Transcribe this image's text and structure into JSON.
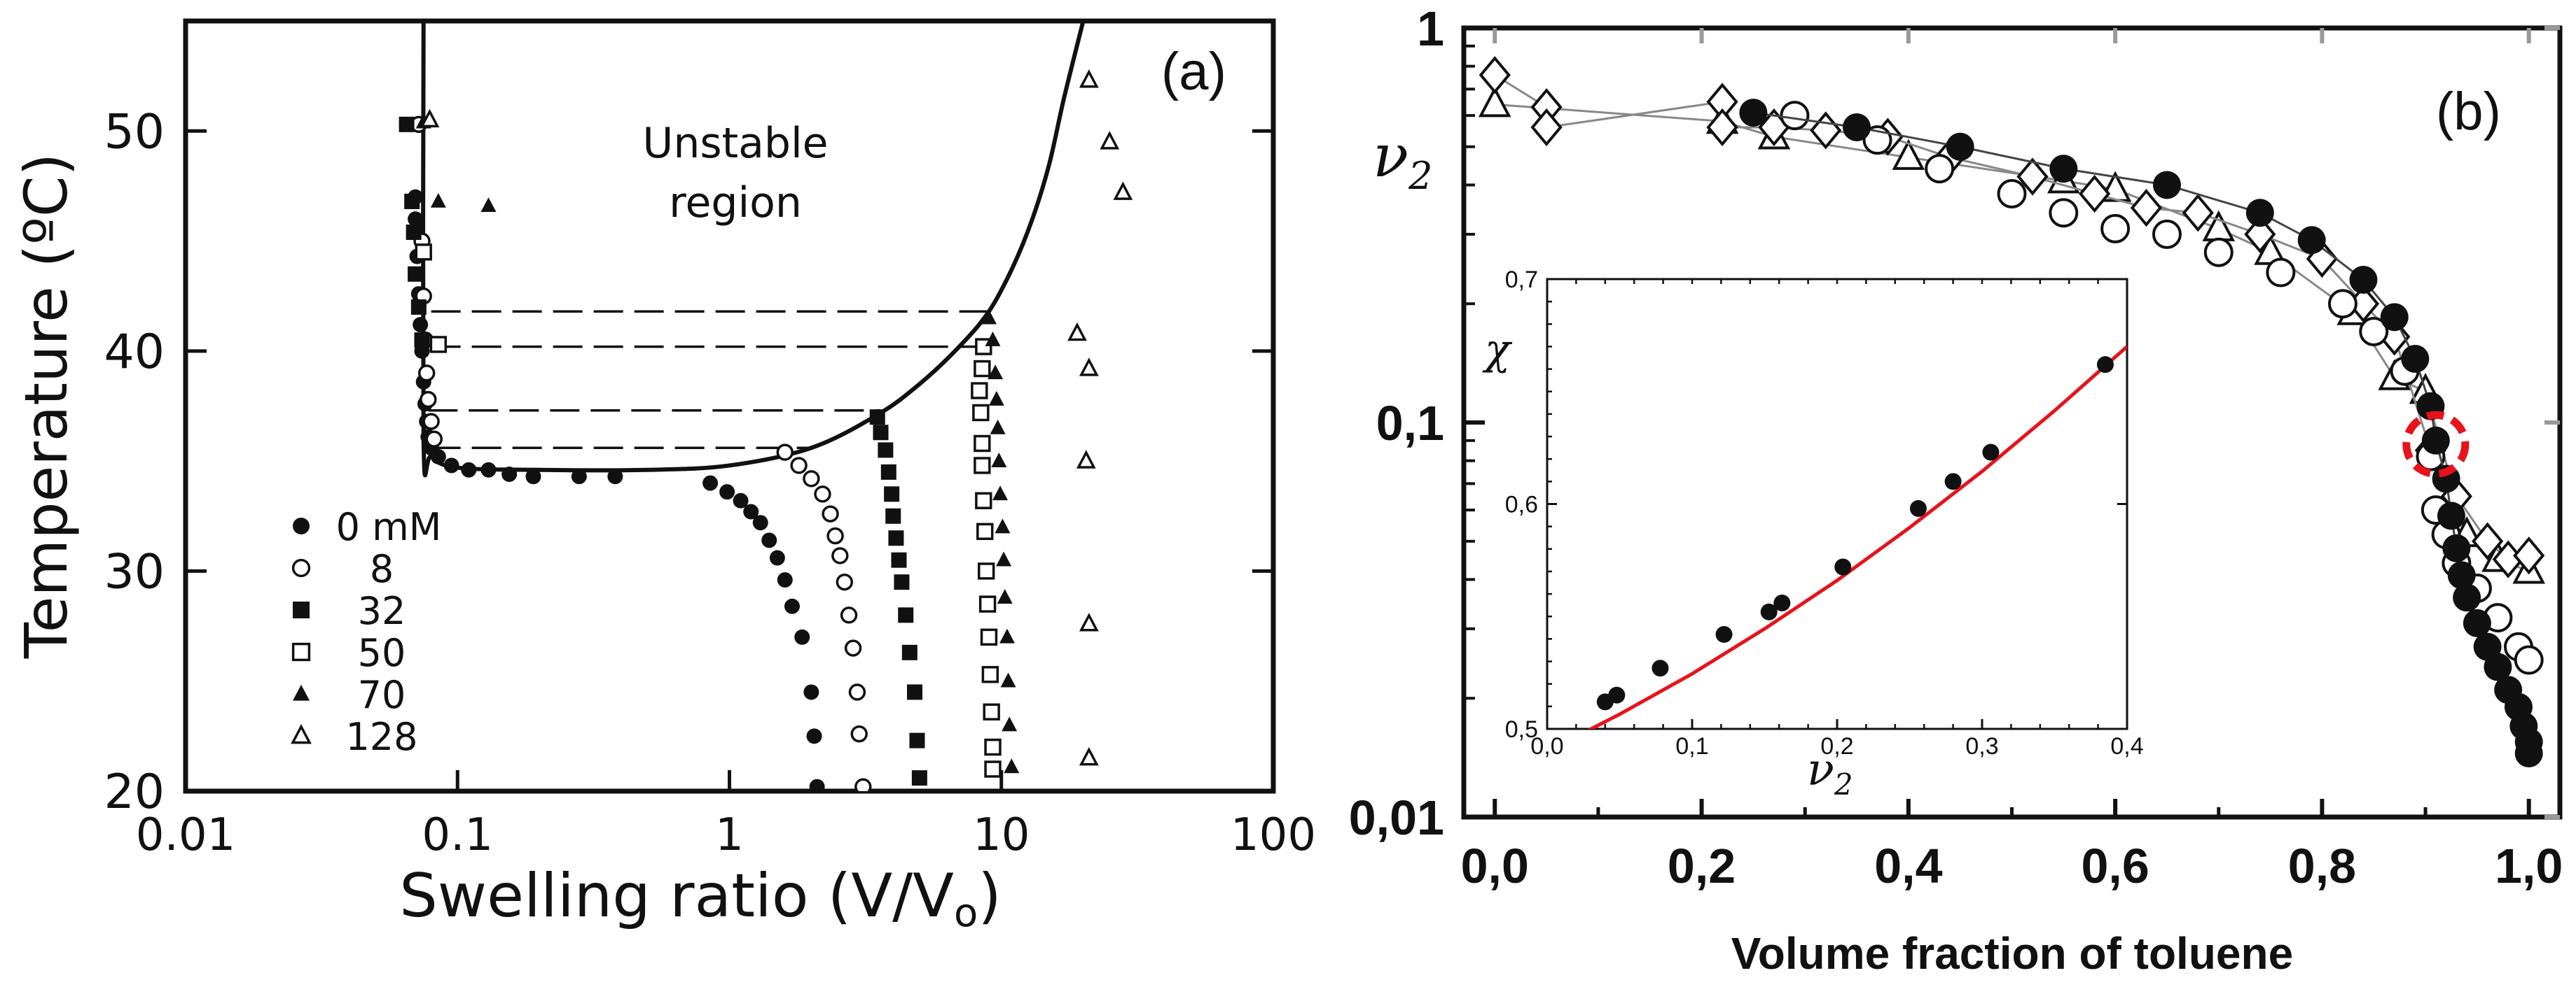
{
  "chart_data": [
    {
      "type": "scatter",
      "panel_label": "(a)",
      "xlabel": "Swelling ratio (V/V₀)",
      "xlabel_parts": [
        "Swelling ratio (V/V",
        "o",
        ")"
      ],
      "ylabel": "Temperature (ºC)",
      "xscale": "log",
      "xlim": [
        0.01,
        100
      ],
      "ylim": [
        20,
        55
      ],
      "xticks": [
        0.01,
        0.1,
        1,
        10,
        100
      ],
      "xtick_labels": [
        "0.01",
        "0.1",
        "1",
        "10",
        "100"
      ],
      "yticks": [
        20,
        30,
        40,
        50
      ],
      "ytick_labels": [
        "20",
        "30",
        "40",
        "50"
      ],
      "annotation_lines": [
        "Unstable",
        "region"
      ],
      "legend": [
        {
          "label": "0 mM",
          "marker": "filled-circle"
        },
        {
          "label": "8",
          "marker": "open-circle"
        },
        {
          "label": "32",
          "marker": "filled-square"
        },
        {
          "label": "50",
          "marker": "open-square"
        },
        {
          "label": "70",
          "marker": "filled-triangle"
        },
        {
          "label": "128",
          "marker": "open-triangle"
        }
      ],
      "spinodal_curve": {
        "x": [
          0.075,
          0.075,
          0.08,
          0.1,
          0.2,
          0.5,
          1,
          2,
          3.5,
          5,
          7,
          9,
          11,
          13,
          15,
          17,
          20
        ],
        "y": [
          55,
          36,
          35.2,
          34.7,
          34.6,
          34.6,
          34.8,
          35.6,
          37.1,
          38.5,
          40.2,
          41.8,
          43.8,
          46,
          48.5,
          51.5,
          55
        ]
      },
      "tie_lines": [
        {
          "x": [
            0.08,
            9.3
          ],
          "y": [
            41.8,
            41.8
          ]
        },
        {
          "x": [
            0.08,
            8.6
          ],
          "y": [
            40.2,
            40.2
          ]
        },
        {
          "x": [
            0.078,
            3.6
          ],
          "y": [
            37.3,
            37.3
          ]
        },
        {
          "x": [
            0.08,
            2.0
          ],
          "y": [
            35.6,
            35.6
          ]
        }
      ],
      "series": [
        {
          "name": "0 mM",
          "marker": "filled-circle",
          "points": [
            [
              0.068,
              50.3
            ],
            [
              0.07,
              47
            ],
            [
              0.07,
              46
            ],
            [
              0.071,
              44.3
            ],
            [
              0.072,
              42.6
            ],
            [
              0.073,
              41.2
            ],
            [
              0.074,
              40
            ],
            [
              0.075,
              38.6
            ],
            [
              0.076,
              37.6
            ],
            [
              0.077,
              36.8
            ],
            [
              0.078,
              36.1
            ],
            [
              0.08,
              35.6
            ],
            [
              0.085,
              35.2
            ],
            [
              0.095,
              34.8
            ],
            [
              0.11,
              34.6
            ],
            [
              0.13,
              34.6
            ],
            [
              0.155,
              34.4
            ],
            [
              0.19,
              34.3
            ],
            [
              0.28,
              34.3
            ],
            [
              0.38,
              34.3
            ],
            [
              0.85,
              34
            ],
            [
              0.98,
              33.6
            ],
            [
              1.1,
              33.2
            ],
            [
              1.2,
              32.7
            ],
            [
              1.3,
              32.2
            ],
            [
              1.4,
              31.4
            ],
            [
              1.5,
              30.6
            ],
            [
              1.6,
              29.6
            ],
            [
              1.7,
              28.4
            ],
            [
              1.85,
              27
            ],
            [
              2.0,
              24.5
            ],
            [
              2.05,
              22.5
            ],
            [
              2.1,
              20.2
            ]
          ]
        },
        {
          "name": "8",
          "marker": "open-circle",
          "points": [
            [
              0.072,
              50.3
            ],
            [
              0.074,
              45
            ],
            [
              0.075,
              42.5
            ],
            [
              0.076,
              40.5
            ],
            [
              0.077,
              39
            ],
            [
              0.078,
              37.8
            ],
            [
              0.08,
              36.8
            ],
            [
              0.082,
              36
            ],
            [
              1.6,
              35.4
            ],
            [
              1.8,
              34.8
            ],
            [
              2.0,
              34.2
            ],
            [
              2.2,
              33.5
            ],
            [
              2.35,
              32.6
            ],
            [
              2.45,
              31.6
            ],
            [
              2.55,
              30.7
            ],
            [
              2.65,
              29.5
            ],
            [
              2.75,
              28
            ],
            [
              2.85,
              26.5
            ],
            [
              2.95,
              24.5
            ],
            [
              3.0,
              22.6
            ],
            [
              3.1,
              20.2
            ]
          ]
        },
        {
          "name": "32",
          "marker": "filled-square",
          "points": [
            [
              0.065,
              50.3
            ],
            [
              0.068,
              46.8
            ],
            [
              0.069,
              45.4
            ],
            [
              0.07,
              43.5
            ],
            [
              0.072,
              42
            ],
            [
              0.074,
              40.5
            ],
            [
              3.5,
              37
            ],
            [
              3.6,
              36.3
            ],
            [
              3.75,
              35.5
            ],
            [
              3.85,
              34.5
            ],
            [
              3.95,
              33.5
            ],
            [
              4.0,
              32.5
            ],
            [
              4.1,
              31.5
            ],
            [
              4.2,
              30.5
            ],
            [
              4.3,
              29.5
            ],
            [
              4.45,
              28
            ],
            [
              4.6,
              26.3
            ],
            [
              4.8,
              24.5
            ],
            [
              4.9,
              22.3
            ],
            [
              5.0,
              20.6
            ]
          ]
        },
        {
          "name": "50",
          "marker": "open-square",
          "points": [
            [
              0.075,
              44.5
            ],
            [
              0.085,
              40.3
            ],
            [
              8.6,
              40.2
            ],
            [
              8.5,
              39.2
            ],
            [
              8.3,
              38.2
            ],
            [
              8.4,
              37.2
            ],
            [
              8.5,
              35.8
            ],
            [
              8.5,
              34.8
            ],
            [
              8.6,
              33.2
            ],
            [
              8.7,
              31.8
            ],
            [
              8.8,
              30
            ],
            [
              8.9,
              28.5
            ],
            [
              9.0,
              27
            ],
            [
              9.1,
              25.3
            ],
            [
              9.2,
              23.6
            ],
            [
              9.3,
              22
            ],
            [
              9.3,
              21
            ]
          ]
        },
        {
          "name": "70",
          "marker": "filled-triangle",
          "points": [
            [
              0.075,
              50.4
            ],
            [
              0.085,
              46.8
            ],
            [
              0.13,
              46.6
            ],
            [
              9.0,
              41.5
            ],
            [
              9.3,
              40.5
            ],
            [
              9.5,
              39
            ],
            [
              9.6,
              37.8
            ],
            [
              9.7,
              36.5
            ],
            [
              9.8,
              35
            ],
            [
              9.9,
              33.5
            ],
            [
              10.1,
              32
            ],
            [
              10.2,
              30.5
            ],
            [
              10.3,
              28.8
            ],
            [
              10.5,
              27
            ],
            [
              10.6,
              25
            ],
            [
              10.7,
              23
            ],
            [
              10.9,
              21.1
            ]
          ]
        },
        {
          "name": "128",
          "marker": "open-triangle",
          "points": [
            [
              0.079,
              50.5
            ],
            [
              21,
              52.3
            ],
            [
              25,
              49.5
            ],
            [
              28,
              47.2
            ],
            [
              19,
              40.8
            ],
            [
              21,
              39.2
            ],
            [
              20.5,
              35
            ],
            [
              21,
              27.6
            ],
            [
              21,
              21.5
            ]
          ]
        }
      ]
    },
    {
      "type": "scatter",
      "panel_label": "(b)",
      "xlabel": "Volume fraction of toluene",
      "ylabel": "ν₂",
      "ylabel_parts": [
        "ν",
        "2"
      ],
      "yscale": "log",
      "xlim": [
        -0.03,
        1.03
      ],
      "ylim": [
        0.01,
        1
      ],
      "xticks": [
        0.0,
        0.2,
        0.4,
        0.6,
        0.8,
        1.0
      ],
      "xtick_labels": [
        "0,0",
        "0,2",
        "0,4",
        "0,6",
        "0,8",
        "1,0"
      ],
      "yticks": [
        0.01,
        0.1,
        1
      ],
      "ytick_labels": [
        "0,01",
        "0,1",
        "1"
      ],
      "highlight_circle": {
        "x": 0.91,
        "y": 0.088,
        "color": "#e8121a"
      },
      "series": [
        {
          "name": "filled-circle",
          "marker": "filled-circle",
          "points": [
            [
              0.25,
              0.61
            ],
            [
              0.35,
              0.56
            ],
            [
              0.45,
              0.5
            ],
            [
              0.55,
              0.44
            ],
            [
              0.65,
              0.4
            ],
            [
              0.74,
              0.34
            ],
            [
              0.79,
              0.29
            ],
            [
              0.84,
              0.23
            ],
            [
              0.87,
              0.185
            ],
            [
              0.89,
              0.145
            ],
            [
              0.905,
              0.11
            ],
            [
              0.91,
              0.09
            ],
            [
              0.92,
              0.072
            ],
            [
              0.925,
              0.058
            ],
            [
              0.93,
              0.048
            ],
            [
              0.935,
              0.041
            ],
            [
              0.94,
              0.036
            ],
            [
              0.95,
              0.031
            ],
            [
              0.96,
              0.027
            ],
            [
              0.97,
              0.024
            ],
            [
              0.98,
              0.021
            ],
            [
              0.99,
              0.019
            ],
            [
              0.995,
              0.017
            ],
            [
              1.0,
              0.0155
            ],
            [
              1.0,
              0.0145
            ]
          ]
        },
        {
          "name": "open-circle",
          "marker": "open-circle",
          "points": [
            [
              0.29,
              0.6
            ],
            [
              0.37,
              0.52
            ],
            [
              0.43,
              0.44
            ],
            [
              0.5,
              0.38
            ],
            [
              0.55,
              0.34
            ],
            [
              0.6,
              0.31
            ],
            [
              0.65,
              0.3
            ],
            [
              0.7,
              0.27
            ],
            [
              0.76,
              0.24
            ],
            [
              0.82,
              0.2
            ],
            [
              0.85,
              0.17
            ],
            [
              0.88,
              0.135
            ],
            [
              0.905,
              0.082
            ],
            [
              0.91,
              0.06
            ],
            [
              0.92,
              0.052
            ],
            [
              0.93,
              0.044
            ],
            [
              0.95,
              0.038
            ],
            [
              0.97,
              0.032
            ],
            [
              0.99,
              0.027
            ],
            [
              1.0,
              0.025
            ]
          ]
        },
        {
          "name": "open-diamond",
          "marker": "open-diamond",
          "points": [
            [
              0.0,
              0.76
            ],
            [
              0.05,
              0.63
            ],
            [
              0.05,
              0.56
            ],
            [
              0.22,
              0.65
            ],
            [
              0.22,
              0.56
            ],
            [
              0.27,
              0.56
            ],
            [
              0.32,
              0.55
            ],
            [
              0.38,
              0.53
            ],
            [
              0.44,
              0.47
            ],
            [
              0.52,
              0.42
            ],
            [
              0.58,
              0.38
            ],
            [
              0.63,
              0.35
            ],
            [
              0.68,
              0.34
            ],
            [
              0.74,
              0.3
            ],
            [
              0.8,
              0.26
            ],
            [
              0.84,
              0.2
            ],
            [
              0.87,
              0.165
            ],
            [
              0.905,
              0.085
            ],
            [
              0.93,
              0.065
            ],
            [
              0.96,
              0.05
            ],
            [
              0.98,
              0.045
            ],
            [
              1.0,
              0.046
            ]
          ]
        },
        {
          "name": "open-triangle",
          "marker": "open-triangle",
          "points": [
            [
              0.0,
              0.64
            ],
            [
              0.22,
              0.58
            ],
            [
              0.27,
              0.53
            ],
            [
              0.4,
              0.47
            ],
            [
              0.55,
              0.41
            ],
            [
              0.6,
              0.39
            ],
            [
              0.7,
              0.31
            ],
            [
              0.75,
              0.27
            ],
            [
              0.83,
              0.19
            ],
            [
              0.87,
              0.13
            ],
            [
              0.9,
              0.12
            ],
            [
              0.94,
              0.052
            ],
            [
              0.97,
              0.045
            ],
            [
              1.0,
              0.042
            ]
          ]
        }
      ],
      "inset": {
        "type": "scatter",
        "xlabel": "ν₂",
        "xlabel_parts": [
          "ν",
          "2"
        ],
        "ylabel": "χ",
        "xlim": [
          0.0,
          0.4
        ],
        "ylim": [
          0.5,
          0.7
        ],
        "xticks": [
          0.0,
          0.1,
          0.2,
          0.3,
          0.4
        ],
        "xtick_labels": [
          "0,0",
          "0,1",
          "0,2",
          "0,3",
          "0,4"
        ],
        "yticks": [
          0.5,
          0.6,
          0.7
        ],
        "ytick_labels": [
          "0,5",
          "0,6",
          "0,7"
        ],
        "fit_color": "#e8121a",
        "fit_curve": {
          "x": [
            0.0,
            0.05,
            0.1,
            0.15,
            0.2,
            0.25,
            0.3,
            0.35,
            0.4
          ],
          "y": [
            0.49,
            0.5065,
            0.5245,
            0.5445,
            0.566,
            0.5895,
            0.6145,
            0.6415,
            0.67
          ]
        },
        "points": [
          [
            0.04,
            0.512
          ],
          [
            0.048,
            0.515
          ],
          [
            0.078,
            0.527
          ],
          [
            0.122,
            0.542
          ],
          [
            0.153,
            0.552
          ],
          [
            0.162,
            0.556
          ],
          [
            0.204,
            0.572
          ],
          [
            0.256,
            0.598
          ],
          [
            0.28,
            0.61
          ],
          [
            0.306,
            0.623
          ],
          [
            0.385,
            0.662
          ]
        ]
      }
    }
  ]
}
